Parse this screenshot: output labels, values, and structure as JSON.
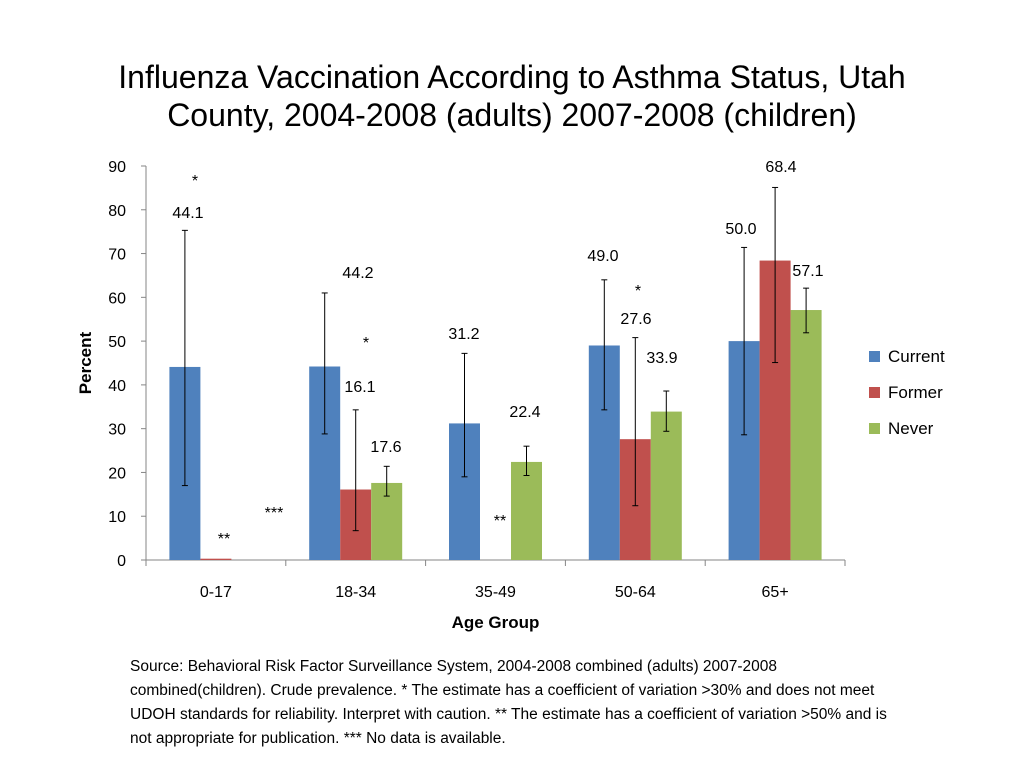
{
  "slide": {
    "title_line1": "Influenza Vaccination According to Asthma Status, Utah",
    "title_line2": "County, 2004-2008 (adults) 2007-2008 (children)",
    "source_note": "Source: Behavioral Risk Factor Surveillance System, 2004-2008 combined (adults) 2007-2008 combined(children). Crude prevalence. * The estimate has a coefficient of variation >30% and does not meet UDOH standards for reliability. Interpret with caution. ** The estimate has a coefficient of variation >50% and is not appropriate for publication. *** No data is available."
  },
  "chart_data": {
    "type": "bar",
    "title": "Influenza Vaccination According to Asthma Status, Utah County, 2004-2008 (adults) 2007-2008 (children)",
    "xlabel": "Age Group",
    "ylabel": "Percent",
    "ylim": [
      0,
      90
    ],
    "yticks": [
      0,
      10,
      20,
      30,
      40,
      50,
      60,
      70,
      80,
      90
    ],
    "grid": false,
    "legend_position": "right",
    "categories": [
      "0-17",
      "18-34",
      "35-49",
      "50-64",
      "65+"
    ],
    "series": [
      {
        "name": "Current",
        "color": "#4F81BD",
        "values": [
          44.1,
          44.2,
          31.2,
          49.0,
          50.0
        ],
        "labels": [
          "44.1",
          "44.2",
          "31.2",
          "49.0",
          "50.0"
        ],
        "ci_low": [
          17,
          28.8,
          19,
          34.3,
          28.6
        ],
        "ci_high": [
          75.3,
          61,
          47.2,
          64,
          71.4
        ],
        "flags": [
          "*",
          "",
          "",
          "",
          ""
        ]
      },
      {
        "name": "Former",
        "color": "#C0504D",
        "values": [
          0.3,
          16.1,
          null,
          27.6,
          68.4
        ],
        "labels": [
          "**",
          "16.1",
          "**",
          "27.6",
          "68.4"
        ],
        "ci_low": [
          null,
          6.7,
          null,
          12.4,
          45.1
        ],
        "ci_high": [
          null,
          34.3,
          null,
          50.8,
          85.1
        ],
        "flags": [
          "",
          "*",
          "",
          "*",
          ""
        ]
      },
      {
        "name": "Never",
        "color": "#9BBB59",
        "values": [
          null,
          17.6,
          22.4,
          33.9,
          57.1
        ],
        "labels": [
          "***",
          "17.6",
          "22.4",
          "33.9",
          "57.1"
        ],
        "ci_low": [
          null,
          14.6,
          19.3,
          29.4,
          51.9
        ],
        "ci_high": [
          null,
          21.4,
          26,
          38.6,
          62.1
        ],
        "flags": [
          "",
          "",
          "",
          "",
          ""
        ]
      }
    ]
  }
}
